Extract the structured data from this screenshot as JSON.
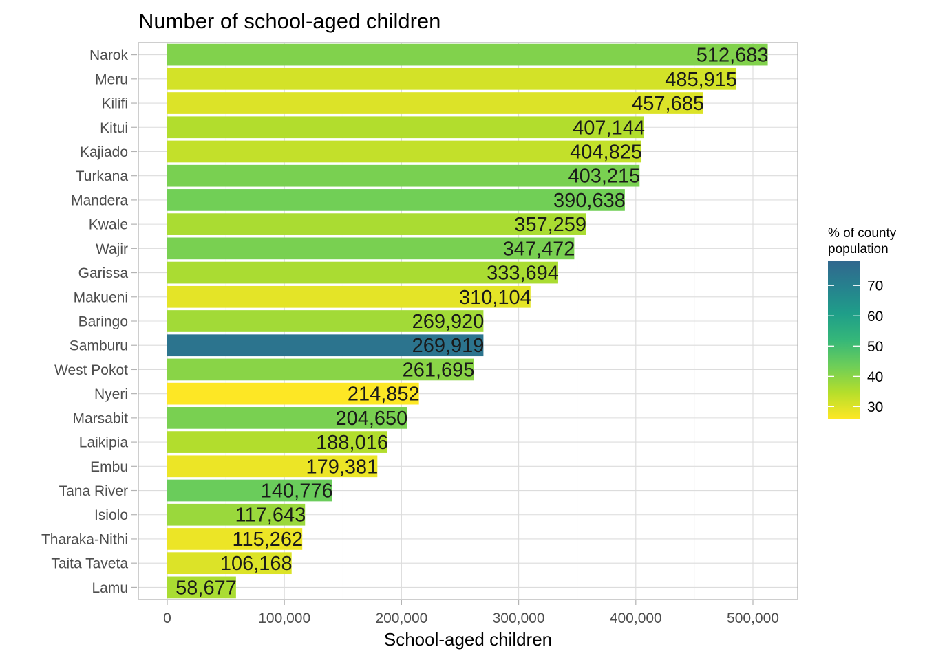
{
  "chart_data": {
    "type": "bar",
    "orientation": "horizontal",
    "title": "Number of school-aged children",
    "xlabel": "School-aged children",
    "ylabel": "",
    "xlim": [
      -25000,
      537000
    ],
    "x_ticks": [
      0,
      100000,
      200000,
      300000,
      400000,
      500000
    ],
    "x_tick_labels": [
      "0",
      "100,000",
      "200,000",
      "300,000",
      "400,000",
      "500,000"
    ],
    "grid": true,
    "categories": [
      "Narok",
      "Meru",
      "Kilifi",
      "Kitui",
      "Kajiado",
      "Turkana",
      "Mandera",
      "Kwale",
      "Wajir",
      "Garissa",
      "Makueni",
      "Baringo",
      "Samburu",
      "West Pokot",
      "Nyeri",
      "Marsabit",
      "Laikipia",
      "Embu",
      "Tana River",
      "Isiolo",
      "Tharaka-Nithi",
      "Taita Taveta",
      "Lamu"
    ],
    "values": [
      512683,
      485915,
      457685,
      407144,
      404825,
      403215,
      390638,
      357259,
      347472,
      333694,
      310104,
      269920,
      269919,
      261695,
      214852,
      204650,
      188016,
      179381,
      140776,
      117643,
      115262,
      106168,
      58677
    ],
    "value_labels": [
      "512,683",
      "485,915",
      "457,685",
      "407,144",
      "404,825",
      "403,215",
      "390,638",
      "357,259",
      "347,472",
      "333,694",
      "310,104",
      "269,920",
      "269,919",
      "261,695",
      "214,852",
      "204,650",
      "188,016",
      "179,381",
      "140,776",
      "117,643",
      "115,262",
      "106,168",
      "58,677"
    ],
    "fill_values": [
      41,
      31,
      30,
      35,
      33,
      42,
      43,
      36,
      42,
      36,
      29,
      37,
      74,
      40,
      26,
      42,
      35,
      28,
      44,
      38,
      28,
      30,
      36
    ],
    "legend": {
      "title_lines": [
        "% of county",
        "population"
      ],
      "position": "right",
      "range": [
        26,
        78
      ],
      "ticks": [
        30,
        40,
        50,
        60,
        70
      ],
      "tick_labels": [
        "30",
        "40",
        "50",
        "60",
        "70"
      ]
    },
    "palette": [
      "#fde725",
      "#b5de2b",
      "#6ece58",
      "#35b779",
      "#1f9e89",
      "#26828e",
      "#31688e"
    ]
  }
}
